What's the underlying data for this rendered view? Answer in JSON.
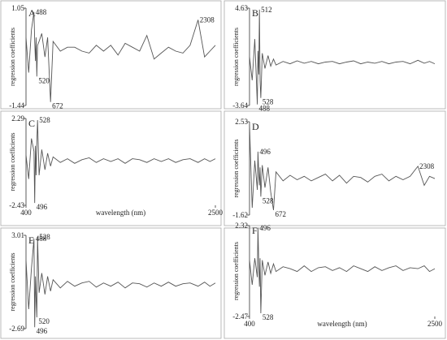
{
  "chart_data": [
    {
      "type": "line",
      "label": "A",
      "ylabel": "regression coefficients",
      "color": "#555",
      "x": [
        400,
        430,
        460,
        488,
        496,
        505,
        512,
        520,
        528,
        545,
        575,
        610,
        640,
        672,
        700,
        780,
        860,
        940,
        1020,
        1100,
        1180,
        1260,
        1340,
        1420,
        1500,
        1580,
        1660,
        1740,
        1820,
        1900,
        1980,
        2060,
        2140,
        2220,
        2308,
        2380,
        2440,
        2500
      ],
      "values": [
        0.3,
        -0.6,
        0.5,
        0.95,
        0.2,
        -0.3,
        0.3,
        -0.7,
        0.1,
        0.2,
        0.4,
        -0.2,
        0.3,
        -1.35,
        0.2,
        -0.05,
        0.05,
        0.05,
        -0.05,
        -0.1,
        0.1,
        -0.05,
        0.1,
        -0.15,
        0.15,
        0.05,
        -0.05,
        0.35,
        -0.25,
        -0.1,
        0.05,
        -0.05,
        -0.1,
        0.1,
        0.75,
        -0.2,
        -0.05,
        0.1
      ],
      "xlim": [
        400,
        2500
      ],
      "ylim": [
        -1.44,
        1.05
      ],
      "yticks": [
        -1.44,
        1.05
      ],
      "annotations": [
        {
          "text": "488",
          "x": 488
        },
        {
          "text": "520",
          "x": 520
        },
        {
          "text": "672",
          "x": 672
        },
        {
          "text": "2308",
          "x": 2308
        }
      ]
    },
    {
      "type": "line",
      "label": "B",
      "ylabel": "regression coefficients",
      "color": "#555",
      "x": [
        400,
        430,
        460,
        488,
        496,
        505,
        512,
        520,
        528,
        545,
        575,
        610,
        640,
        672,
        700,
        780,
        860,
        940,
        1020,
        1100,
        1180,
        1260,
        1340,
        1420,
        1500,
        1580,
        1660,
        1740,
        1820,
        1900,
        1980,
        2060,
        2140,
        2220,
        2308,
        2380,
        2440,
        2500
      ],
      "values": [
        0.5,
        -1.5,
        2.0,
        -3.55,
        1.0,
        -1.0,
        4.5,
        -1.5,
        -3.0,
        0.8,
        -0.5,
        0.6,
        -0.3,
        0.3,
        -0.2,
        0.1,
        -0.1,
        0.15,
        -0.05,
        0.1,
        -0.1,
        0.05,
        0.1,
        -0.1,
        0.05,
        0.15,
        -0.1,
        0.05,
        -0.05,
        0.1,
        -0.1,
        0.05,
        0.1,
        -0.1,
        0.2,
        -0.05,
        0.1,
        -0.1
      ],
      "xlim": [
        400,
        2500
      ],
      "ylim": [
        -3.64,
        4.63
      ],
      "yticks": [
        -3.64,
        4.63
      ],
      "annotations": [
        {
          "text": "512",
          "x": 512
        },
        {
          "text": "528",
          "x": 528
        },
        {
          "text": "488",
          "x": 488
        }
      ]
    },
    {
      "type": "line",
      "label": "C",
      "ylabel": "regression coefficients",
      "xlabel": "wavelength (nm)",
      "color": "#555",
      "x": [
        400,
        430,
        460,
        488,
        496,
        505,
        512,
        520,
        528,
        545,
        575,
        610,
        640,
        672,
        700,
        780,
        860,
        940,
        1020,
        1100,
        1180,
        1260,
        1340,
        1420,
        1500,
        1580,
        1660,
        1740,
        1820,
        1900,
        1980,
        2060,
        2140,
        2220,
        2308,
        2380,
        2440,
        2500
      ],
      "values": [
        0.3,
        -1.0,
        1.2,
        0.5,
        -2.3,
        0.8,
        -0.8,
        1.0,
        2.2,
        -0.8,
        0.6,
        -0.5,
        0.4,
        -0.3,
        0.2,
        -0.1,
        0.1,
        -0.15,
        0.05,
        0.15,
        -0.1,
        0.1,
        -0.05,
        0.1,
        -0.15,
        0.1,
        0.05,
        -0.1,
        0.1,
        -0.05,
        0.1,
        -0.1,
        0.05,
        0.1,
        -0.1,
        0.1,
        -0.05,
        0.1
      ],
      "xlim": [
        400,
        2500
      ],
      "xticks": [
        400,
        2500
      ],
      "ylim": [
        -2.43,
        2.29
      ],
      "yticks": [
        -2.43,
        2.29
      ],
      "annotations": [
        {
          "text": "528",
          "x": 528
        },
        {
          "text": "496",
          "x": 496
        }
      ]
    },
    {
      "type": "line",
      "label": "D",
      "ylabel": "regression coefficients",
      "color": "#555",
      "x": [
        400,
        430,
        460,
        488,
        496,
        505,
        512,
        520,
        528,
        545,
        575,
        610,
        640,
        672,
        700,
        780,
        860,
        940,
        1020,
        1100,
        1180,
        1260,
        1340,
        1420,
        1500,
        1580,
        1660,
        1740,
        1820,
        1900,
        1980,
        2060,
        2140,
        2220,
        2308,
        2380,
        2440,
        2500
      ],
      "values": [
        2.4,
        -1.3,
        0.8,
        -0.5,
        1.2,
        0.2,
        -0.3,
        0.5,
        -0.8,
        0.6,
        -0.4,
        0.5,
        -0.6,
        -1.4,
        0.3,
        -0.1,
        0.15,
        -0.05,
        0.1,
        -0.1,
        0.05,
        0.2,
        -0.1,
        0.15,
        -0.2,
        0.1,
        0.05,
        -0.15,
        0.1,
        0.2,
        -0.1,
        0.1,
        -0.05,
        0.1,
        0.55,
        -0.3,
        0.1,
        0
      ],
      "xlim": [
        400,
        2500
      ],
      "ylim": [
        -1.62,
        2.53
      ],
      "yticks": [
        -1.62,
        2.53
      ],
      "annotations": [
        {
          "text": "496",
          "x": 496
        },
        {
          "text": "528",
          "x": 528
        },
        {
          "text": "672",
          "x": 672
        },
        {
          "text": "2308",
          "x": 2308
        }
      ]
    },
    {
      "type": "line",
      "label": "E",
      "ylabel": "regression coefficients",
      "color": "#555",
      "x": [
        400,
        430,
        460,
        488,
        496,
        505,
        512,
        520,
        528,
        545,
        575,
        610,
        640,
        672,
        700,
        780,
        860,
        940,
        1020,
        1100,
        1180,
        1260,
        1340,
        1420,
        1500,
        1580,
        1660,
        1740,
        1820,
        1900,
        1980,
        2060,
        2140,
        2220,
        2308,
        2380,
        2440,
        2500
      ],
      "values": [
        1.5,
        -1.5,
        1.0,
        2.8,
        -2.6,
        0.5,
        -0.8,
        -2.0,
        2.9,
        -0.5,
        0.7,
        -0.6,
        0.5,
        -0.4,
        0.3,
        -0.2,
        0.2,
        -0.1,
        0.1,
        0.2,
        -0.15,
        0.1,
        -0.1,
        0.15,
        -0.2,
        0.1,
        0.05,
        -0.15,
        0.1,
        -0.1,
        0.15,
        -0.1,
        0.05,
        0.1,
        -0.1,
        0.15,
        -0.1,
        0.1
      ],
      "xlim": [
        400,
        2500
      ],
      "ylim": [
        -2.69,
        3.01
      ],
      "yticks": [
        -2.69,
        3.01
      ],
      "annotations": [
        {
          "text": "488",
          "x": 488
        },
        {
          "text": "528",
          "x": 528
        },
        {
          "text": "520",
          "x": 520
        },
        {
          "text": "496",
          "x": 496
        }
      ]
    },
    {
      "type": "line",
      "label": "F",
      "ylabel": "regression coefficients",
      "xlabel": "wavelength (nm)",
      "color": "#555",
      "x": [
        400,
        430,
        460,
        488,
        496,
        505,
        512,
        520,
        528,
        545,
        575,
        610,
        640,
        672,
        700,
        780,
        860,
        940,
        1020,
        1100,
        1180,
        1260,
        1340,
        1420,
        1500,
        1580,
        1660,
        1740,
        1820,
        1900,
        1980,
        2060,
        2140,
        2220,
        2308,
        2380,
        2440,
        2500
      ],
      "values": [
        0.5,
        -0.8,
        0.6,
        -0.4,
        2.2,
        0.3,
        -0.9,
        0.6,
        -2.3,
        0.5,
        -0.3,
        0.4,
        -0.2,
        0.3,
        -0.1,
        0.15,
        0.05,
        -0.1,
        0.2,
        -0.1,
        0.1,
        0.15,
        -0.05,
        0.1,
        -0.1,
        0.2,
        0.05,
        -0.1,
        0.15,
        -0.05,
        0.1,
        0.2,
        -0.05,
        0.1,
        0.05,
        0.2,
        -0.1,
        0.05
      ],
      "xlim": [
        400,
        2500
      ],
      "xticks": [
        400,
        2500
      ],
      "ylim": [
        -2.47,
        2.32
      ],
      "yticks": [
        -2.47,
        2.32
      ],
      "annotations": [
        {
          "text": "496",
          "x": 496
        },
        {
          "text": "528",
          "x": 528
        }
      ]
    }
  ]
}
